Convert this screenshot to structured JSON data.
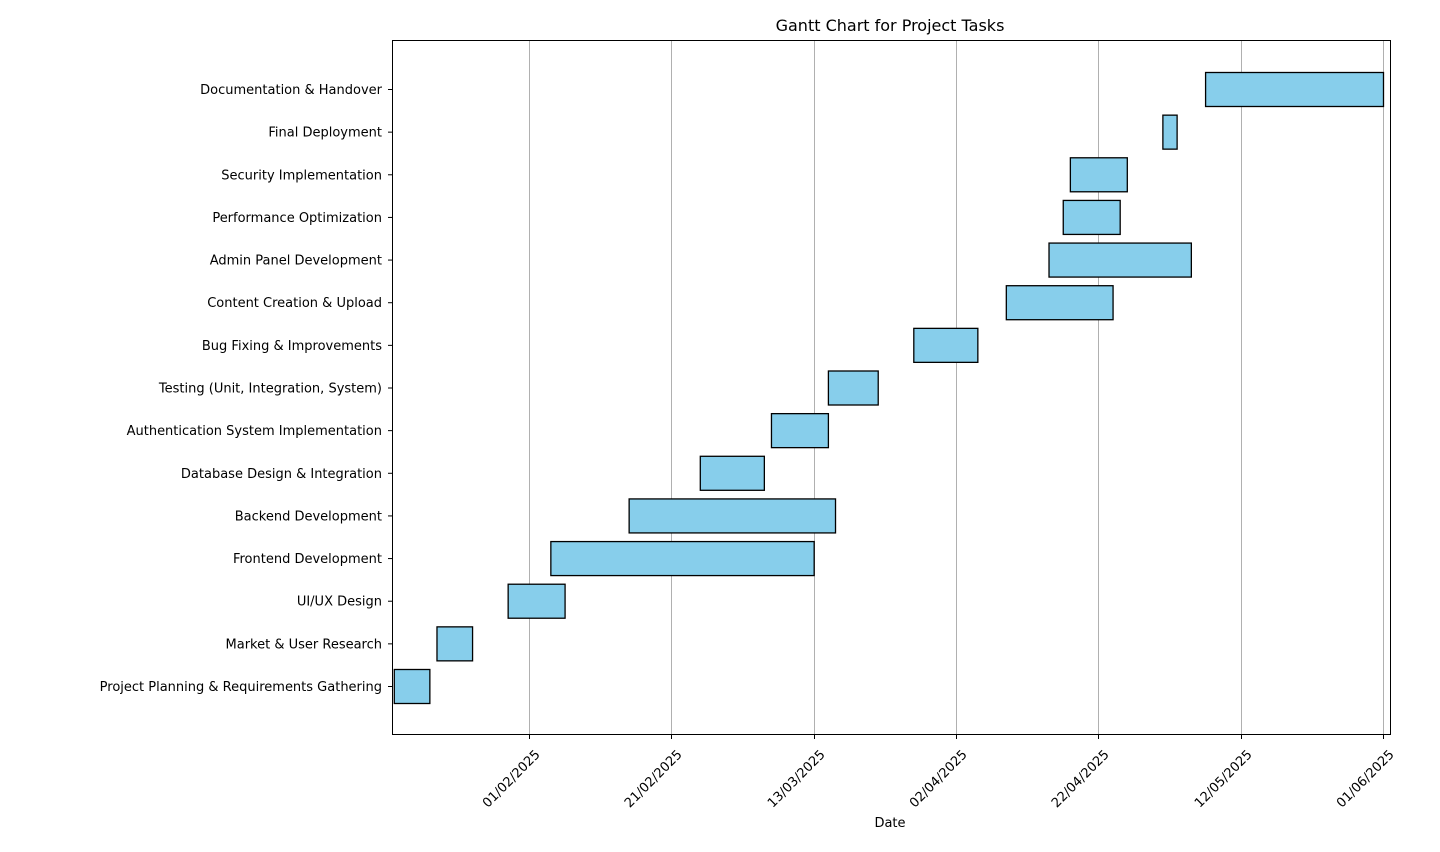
{
  "chart_data": {
    "type": "gantt",
    "title": "Gantt Chart for Project Tasks",
    "xlabel": "Date",
    "ylabel": "",
    "x_ticks": [
      "01/02/2025",
      "21/02/2025",
      "13/03/2025",
      "02/04/2025",
      "22/04/2025",
      "12/05/2025",
      "01/06/2025"
    ],
    "x_range": [
      "2025-01-12",
      "2025-06-01"
    ],
    "grid": "vertical",
    "bar_color": "#87CEEB",
    "bar_edge_color": "#000000",
    "tasks": [
      {
        "name": "Project Planning & Requirements Gathering",
        "start": "2025-01-13",
        "end": "2025-01-18"
      },
      {
        "name": "Market & User Research",
        "start": "2025-01-19",
        "end": "2025-01-24"
      },
      {
        "name": "UI/UX Design",
        "start": "2025-01-29",
        "end": "2025-02-06"
      },
      {
        "name": "Frontend Development",
        "start": "2025-02-04",
        "end": "2025-03-13"
      },
      {
        "name": "Backend Development",
        "start": "2025-02-15",
        "end": "2025-03-16"
      },
      {
        "name": "Database Design & Integration",
        "start": "2025-02-25",
        "end": "2025-03-06"
      },
      {
        "name": "Authentication System Implementation",
        "start": "2025-03-07",
        "end": "2025-03-15"
      },
      {
        "name": "Testing (Unit, Integration, System)",
        "start": "2025-03-15",
        "end": "2025-03-22"
      },
      {
        "name": "Bug Fixing & Improvements",
        "start": "2025-03-27",
        "end": "2025-04-05"
      },
      {
        "name": "Content Creation & Upload",
        "start": "2025-04-09",
        "end": "2025-04-24"
      },
      {
        "name": "Admin Panel Development",
        "start": "2025-04-15",
        "end": "2025-05-05"
      },
      {
        "name": "Performance Optimization",
        "start": "2025-04-17",
        "end": "2025-04-25"
      },
      {
        "name": "Security Implementation",
        "start": "2025-04-18",
        "end": "2025-04-26"
      },
      {
        "name": "Final Deployment",
        "start": "2025-05-01",
        "end": "2025-05-03"
      },
      {
        "name": "Documentation & Handover",
        "start": "2025-05-07",
        "end": "2025-06-01"
      }
    ]
  }
}
